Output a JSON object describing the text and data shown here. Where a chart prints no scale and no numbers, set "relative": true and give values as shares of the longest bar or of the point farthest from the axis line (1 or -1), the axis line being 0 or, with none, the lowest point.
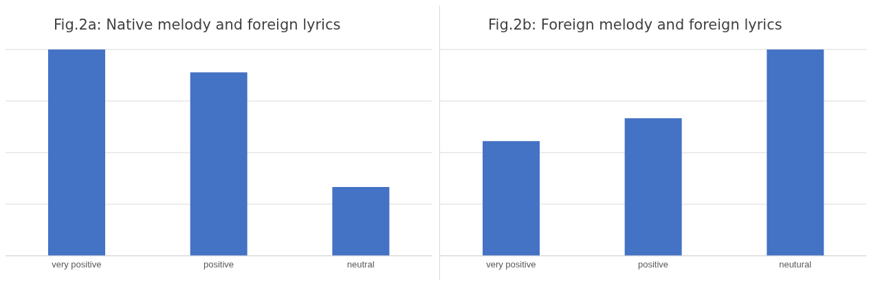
{
  "chart_data": [
    {
      "type": "bar",
      "title": "Fig.2a: Native melody and foreign lyrics",
      "categories": [
        "very positive",
        "positive",
        "neutral"
      ],
      "values": [
        1,
        0.889,
        0.333
      ],
      "color": "#4472c4",
      "relative": true,
      "grid": "y"
    },
    {
      "type": "bar",
      "title": "Fig.2b: Foreign melody and foreign lyrics",
      "categories": [
        "very positive",
        "positive",
        "neutural"
      ],
      "values": [
        0.556,
        0.667,
        1
      ],
      "color": "#4472c4",
      "relative": true,
      "grid": "y"
    }
  ]
}
